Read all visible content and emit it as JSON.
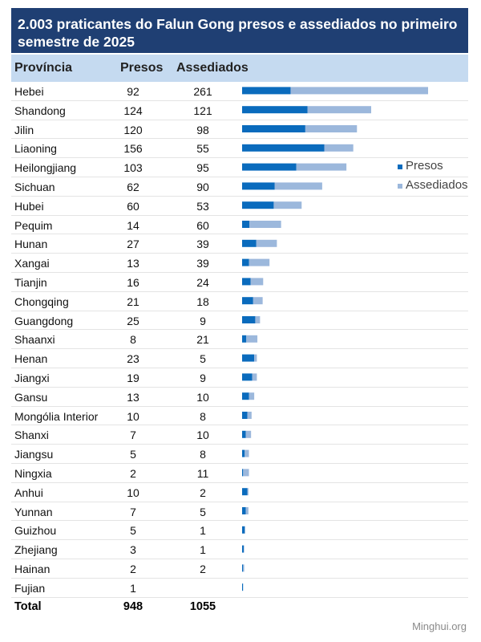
{
  "title": "2.003 praticantes do Falun Gong presos e assediados no primeiro semestre de 2025",
  "columns": {
    "province": "Província",
    "arrested": "Presos",
    "harassed": "Assediados"
  },
  "colors": {
    "arrested": "#0a6bbd",
    "harassed": "#9cb8dc",
    "title_bg": "#1f3f73",
    "header_bg": "#c5daf0"
  },
  "chart_data": {
    "type": "bar",
    "orientation": "horizontal",
    "stacked": true,
    "title": "2.003 praticantes do Falun Gong presos e assediados no primeiro semestre de 2025",
    "categories": [
      "Hebei",
      "Shandong",
      "Jilin",
      "Liaoning",
      "Heilongjiang",
      "Sichuan",
      "Hubei",
      "Pequim",
      "Hunan",
      "Xangai",
      "Tianjin",
      "Chongqing",
      "Guangdong",
      "Shaanxi",
      "Henan",
      "Jiangxi",
      "Gansu",
      "Mongólia Interior",
      "Shanxi",
      "Jiangsu",
      "Ningxia",
      "Anhui",
      "Yunnan",
      "Guizhou",
      "Zhejiang",
      "Hainan",
      "Fujian"
    ],
    "series": [
      {
        "name": "Presos",
        "values": [
          92,
          124,
          120,
          156,
          103,
          62,
          60,
          14,
          27,
          13,
          16,
          21,
          25,
          8,
          23,
          19,
          13,
          10,
          7,
          5,
          2,
          10,
          7,
          5,
          3,
          2,
          1
        ]
      },
      {
        "name": "Assediados",
        "values": [
          261,
          121,
          98,
          55,
          95,
          90,
          53,
          60,
          39,
          39,
          24,
          18,
          9,
          21,
          5,
          9,
          10,
          8,
          10,
          8,
          11,
          2,
          5,
          1,
          1,
          2,
          null
        ]
      }
    ],
    "legend_position": "right",
    "totals": {
      "arrested": "948",
      "harassed": "1055",
      "label": "Total"
    }
  },
  "source": "Minghui.org"
}
